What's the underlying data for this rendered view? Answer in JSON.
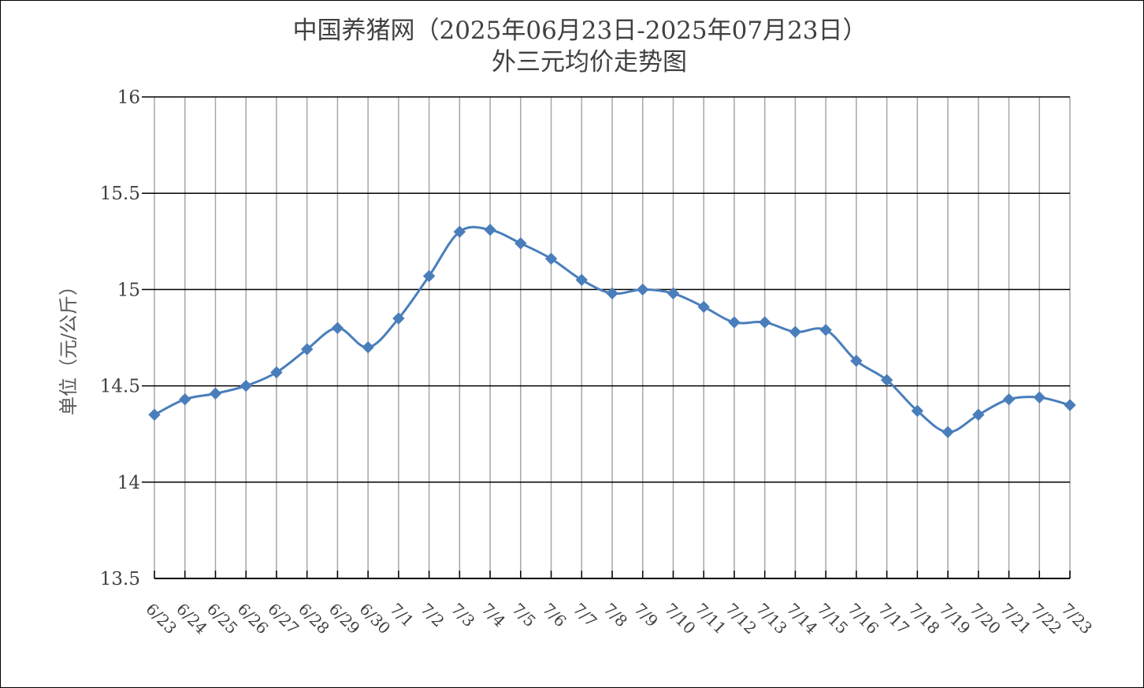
{
  "chart_data": {
    "type": "line",
    "title_line1": "中国养猪网（2025年06月23日-2025年07月23日）",
    "title_line2": "外三元均价走势图",
    "xlabel": "",
    "ylabel": "单位（元/公斤）",
    "ylim": [
      13.5,
      16
    ],
    "yticks": [
      "16",
      "15.5",
      "15",
      "14.5",
      "14",
      "13.5"
    ],
    "ytick_values": [
      16,
      15.5,
      15,
      14.5,
      14,
      13.5
    ],
    "grid": true,
    "smooth": true,
    "marker": "diamond",
    "colors": {
      "line": "#4a7ebb",
      "major_grid": "#000000",
      "minor_grid": "#a6a6a6"
    },
    "categories": [
      "6/23",
      "6/24",
      "6/25",
      "6/26",
      "6/27",
      "6/28",
      "6/29",
      "6/30",
      "7/1",
      "7/2",
      "7/3",
      "7/4",
      "7/5",
      "7/6",
      "7/7",
      "7/8",
      "7/9",
      "7/10",
      "7/11",
      "7/12",
      "7/13",
      "7/14",
      "7/15",
      "7/16",
      "7/17",
      "7/18",
      "7/19",
      "7/20",
      "7/21",
      "7/22",
      "7/23"
    ],
    "values": [
      14.35,
      14.43,
      14.46,
      14.5,
      14.57,
      14.69,
      14.8,
      14.7,
      14.85,
      15.07,
      15.3,
      15.31,
      15.24,
      15.16,
      15.05,
      14.98,
      15.0,
      14.98,
      14.91,
      14.83,
      14.83,
      14.78,
      14.79,
      14.63,
      14.53,
      14.37,
      14.26,
      14.35,
      14.43,
      14.44,
      14.4
    ]
  }
}
